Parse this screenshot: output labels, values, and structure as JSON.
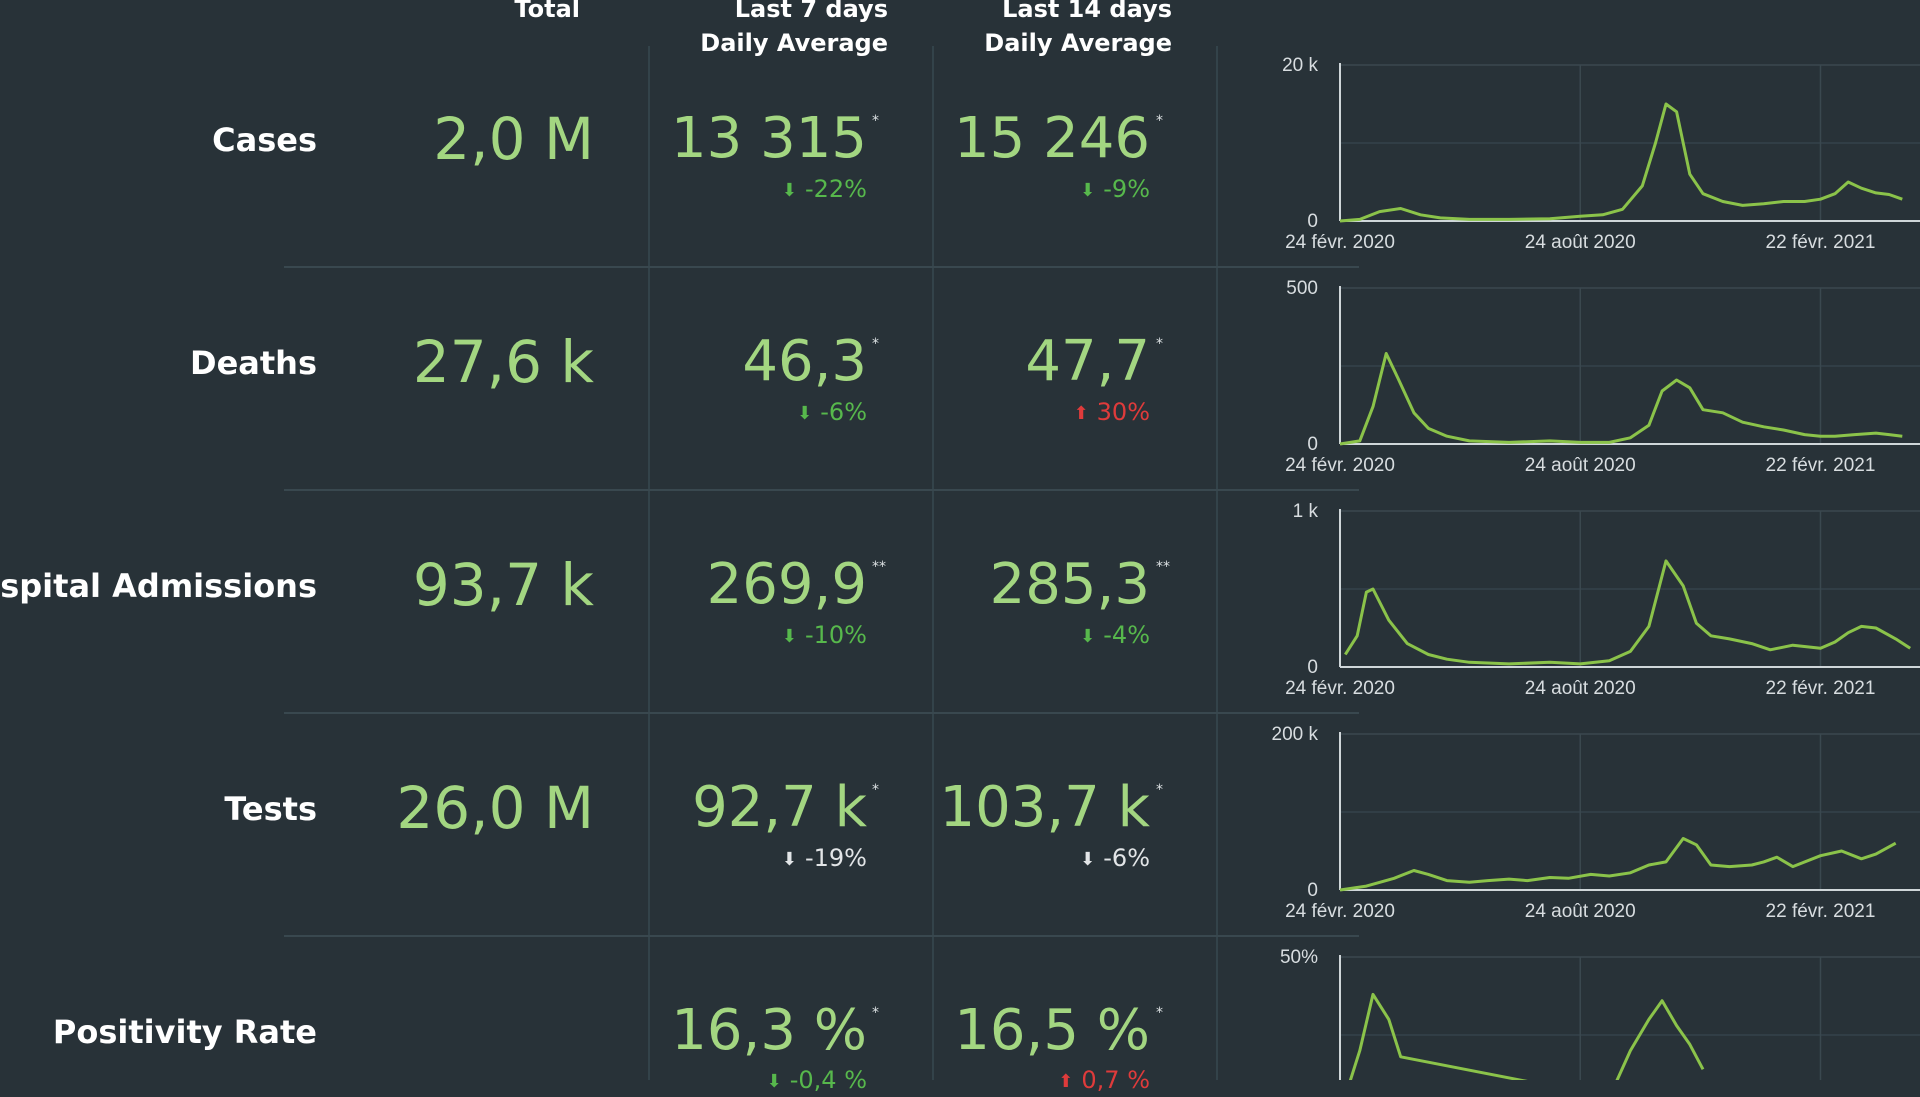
{
  "headers": {
    "total": "Total",
    "last7_line1": "Last 7 days",
    "last7_line2": "Daily Average",
    "last14_line1": "Last 14 days",
    "last14_line2": "Daily Average"
  },
  "rows": [
    {
      "label": "Cases",
      "total": "2,0 M",
      "avg7": "13 315",
      "star7": "*",
      "chg7": "-22%",
      "dir7": "down",
      "avg14": "15 246",
      "star14": "*",
      "chg14": "-9%",
      "dir14": "down"
    },
    {
      "label": "Deaths",
      "total": "27,6 k",
      "avg7": "46,3",
      "star7": "*",
      "chg7": "-6%",
      "dir7": "down",
      "avg14": "47,7",
      "star14": "*",
      "chg14": "30%",
      "dir14": "up"
    },
    {
      "label": "Hospital Admissions",
      "total": "93,7 k",
      "avg7": "269,9",
      "star7": "**",
      "chg7": "-10%",
      "dir7": "down",
      "avg14": "285,3",
      "star14": "**",
      "chg14": "-4%",
      "dir14": "down"
    },
    {
      "label": "Tests",
      "total": "26,0 M",
      "avg7": "92,7 k",
      "star7": "*",
      "chg7": "-19%",
      "dir7": "neutral",
      "avg14": "103,7 k",
      "star14": "*",
      "chg14": "-6%",
      "dir14": "neutral"
    },
    {
      "label": "Positivity Rate",
      "total": "",
      "avg7": "16,3 %",
      "star7": "*",
      "chg7": "-0,4 %",
      "dir7": "down",
      "avg14": "16,5 %",
      "star14": "*",
      "chg14": "0,7 %",
      "dir14": "up"
    }
  ],
  "icons": {
    "down": "arrow-down-icon",
    "up": "arrow-up-icon"
  },
  "colors": {
    "background": "#283238",
    "value": "#a3d681",
    "good": "#57b84c",
    "bad": "#df3b3b",
    "line": "#8bc34a"
  },
  "chart_data": [
    {
      "type": "line",
      "series_name": "Cases",
      "ylim": [
        0,
        20000
      ],
      "ytick_labels": [
        "0",
        "20 k"
      ],
      "xtick_labels": [
        "24 févr. 2020",
        "24 août 2020",
        "22 févr. 2021"
      ],
      "x": [
        "2020-02-24",
        "2020-03-10",
        "2020-03-25",
        "2020-04-10",
        "2020-04-25",
        "2020-05-10",
        "2020-06-01",
        "2020-07-01",
        "2020-08-01",
        "2020-08-24",
        "2020-09-10",
        "2020-09-25",
        "2020-10-10",
        "2020-10-20",
        "2020-10-28",
        "2020-11-05",
        "2020-11-15",
        "2020-11-25",
        "2020-12-10",
        "2020-12-25",
        "2021-01-10",
        "2021-01-25",
        "2021-02-10",
        "2021-02-22",
        "2021-03-05",
        "2021-03-15",
        "2021-03-25",
        "2021-04-05",
        "2021-04-15",
        "2021-04-25"
      ],
      "y": [
        0,
        200,
        1200,
        1600,
        800,
        400,
        200,
        200,
        300,
        600,
        800,
        1500,
        4500,
        10000,
        15000,
        14000,
        6000,
        3500,
        2500,
        2000,
        2200,
        2500,
        2500,
        2800,
        3500,
        5000,
        4200,
        3600,
        3400,
        2800
      ]
    },
    {
      "type": "line",
      "series_name": "Deaths",
      "ylim": [
        0,
        500
      ],
      "ytick_labels": [
        "0",
        "500"
      ],
      "xtick_labels": [
        "24 févr. 2020",
        "24 août 2020",
        "22 févr. 2021"
      ],
      "x": [
        "2020-02-24",
        "2020-03-10",
        "2020-03-20",
        "2020-03-30",
        "2020-04-08",
        "2020-04-20",
        "2020-05-01",
        "2020-05-15",
        "2020-06-01",
        "2020-07-01",
        "2020-08-01",
        "2020-08-24",
        "2020-09-15",
        "2020-10-01",
        "2020-10-15",
        "2020-10-25",
        "2020-11-05",
        "2020-11-15",
        "2020-11-25",
        "2020-12-10",
        "2020-12-25",
        "2021-01-10",
        "2021-01-25",
        "2021-02-10",
        "2021-02-22",
        "2021-03-05",
        "2021-03-20",
        "2021-04-05",
        "2021-04-15",
        "2021-04-25"
      ],
      "y": [
        0,
        10,
        120,
        290,
        210,
        100,
        50,
        25,
        10,
        5,
        10,
        5,
        5,
        20,
        60,
        170,
        205,
        180,
        110,
        100,
        70,
        55,
        45,
        30,
        25,
        25,
        30,
        35,
        30,
        25
      ]
    },
    {
      "type": "line",
      "series_name": "Hospital Admissions",
      "ylim": [
        0,
        1000
      ],
      "ytick_labels": [
        "0",
        "1 k"
      ],
      "xtick_labels": [
        "24 févr. 2020",
        "24 août 2020",
        "22 févr. 2021"
      ],
      "x": [
        "2020-02-28",
        "2020-03-08",
        "2020-03-15",
        "2020-03-20",
        "2020-04-01",
        "2020-04-15",
        "2020-05-01",
        "2020-05-15",
        "2020-06-01",
        "2020-07-01",
        "2020-08-01",
        "2020-08-24",
        "2020-09-15",
        "2020-10-01",
        "2020-10-15",
        "2020-10-28",
        "2020-11-10",
        "2020-11-20",
        "2020-12-01",
        "2020-12-15",
        "2021-01-01",
        "2021-01-15",
        "2021-02-01",
        "2021-02-22",
        "2021-03-05",
        "2021-03-15",
        "2021-03-25",
        "2021-04-05",
        "2021-04-20",
        "2021-05-01"
      ],
      "y": [
        80,
        200,
        480,
        500,
        300,
        150,
        80,
        50,
        30,
        20,
        30,
        20,
        40,
        100,
        260,
        680,
        520,
        280,
        200,
        180,
        150,
        110,
        140,
        120,
        160,
        220,
        260,
        250,
        180,
        120
      ]
    },
    {
      "type": "line",
      "series_name": "Tests",
      "ylim": [
        0,
        200000
      ],
      "ytick_labels": [
        "0",
        "200 k"
      ],
      "xtick_labels": [
        "24 févr. 2020",
        "24 août 2020",
        "22 févr. 2021"
      ],
      "x": [
        "2020-02-24",
        "2020-03-15",
        "2020-04-05",
        "2020-04-20",
        "2020-05-01",
        "2020-05-15",
        "2020-06-01",
        "2020-06-15",
        "2020-07-01",
        "2020-07-15",
        "2020-08-01",
        "2020-08-15",
        "2020-09-01",
        "2020-09-15",
        "2020-10-01",
        "2020-10-15",
        "2020-10-28",
        "2020-11-10",
        "2020-11-20",
        "2020-12-01",
        "2020-12-15",
        "2021-01-01",
        "2021-01-10",
        "2021-01-20",
        "2021-02-01",
        "2021-02-22",
        "2021-03-10",
        "2021-03-25",
        "2021-04-05",
        "2021-04-20"
      ],
      "y": [
        0,
        5000,
        15000,
        25000,
        20000,
        12000,
        10000,
        12000,
        14000,
        12000,
        16000,
        15000,
        20000,
        18000,
        22000,
        32000,
        36000,
        66000,
        58000,
        32000,
        30000,
        32000,
        36000,
        42000,
        30000,
        44000,
        50000,
        40000,
        46000,
        60000
      ]
    },
    {
      "type": "line",
      "series_name": "Positivity Rate",
      "ylim": [
        0,
        50
      ],
      "ytick_labels": [
        "50%"
      ],
      "xtick_labels": [],
      "x": [
        "2020-02-24",
        "2020-03-10",
        "2020-03-20",
        "2020-04-01",
        "2020-04-10",
        "2020-09-15",
        "2020-10-01",
        "2020-10-15",
        "2020-10-25",
        "2020-11-05",
        "2020-11-15",
        "2020-11-25"
      ],
      "y": [
        0,
        20,
        38,
        30,
        18,
        5,
        20,
        30,
        36,
        28,
        22,
        14
      ]
    }
  ]
}
